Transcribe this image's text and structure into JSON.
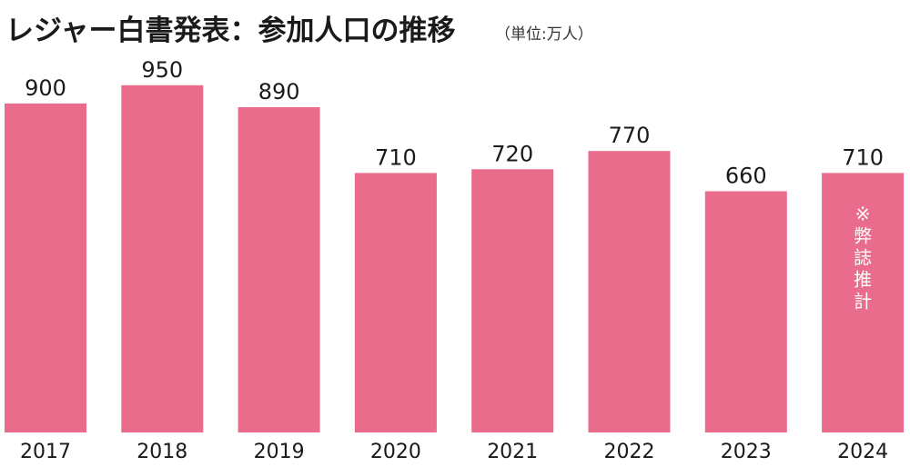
{
  "chart_data": {
    "type": "bar",
    "title": "レジャー白書発表：参加人口の推移",
    "unit_note": "（単位:万人）",
    "categories": [
      "2017",
      "2018",
      "2019",
      "2020",
      "2021",
      "2022",
      "2023",
      "2024"
    ],
    "values": [
      900,
      950,
      890,
      710,
      720,
      770,
      660,
      710
    ],
    "annotation": {
      "category": "2024",
      "text": "※弊誌推計"
    },
    "colors": {
      "bar": "#E96C8C",
      "text": "#1a1a1a",
      "annotation_text": "#ffffff"
    },
    "ylim": [
      0,
      1000
    ],
    "xlabel": "",
    "ylabel": "",
    "grid": false,
    "legend": "none"
  }
}
